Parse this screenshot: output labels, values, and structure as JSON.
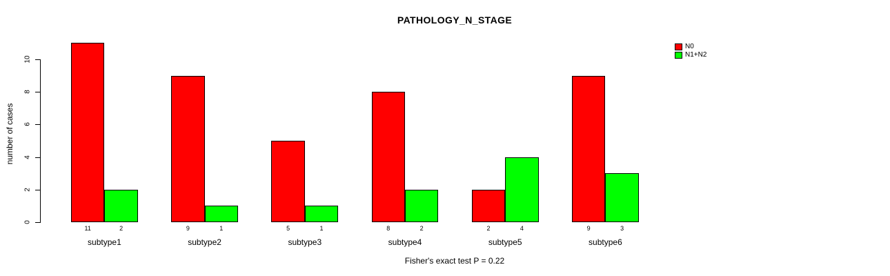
{
  "chart_data": {
    "type": "bar",
    "title": "PATHOLOGY_N_STAGE",
    "ylabel": "number of cases",
    "xlabel": "",
    "categories": [
      "subtype1",
      "subtype2",
      "subtype3",
      "subtype4",
      "subtype5",
      "subtype6"
    ],
    "series": [
      {
        "name": "N0",
        "color": "#ff0000",
        "values": [
          11,
          9,
          5,
          8,
          2,
          9
        ]
      },
      {
        "name": "N1+N2",
        "color": "#00ff00",
        "values": [
          2,
          1,
          1,
          2,
          4,
          3
        ]
      }
    ],
    "ylim": [
      0,
      11
    ],
    "y_ticks": [
      0,
      2,
      4,
      6,
      8,
      10
    ],
    "grid": false,
    "legend_position": "top-right",
    "annotation": "Fisher's exact test P = 0.22"
  }
}
